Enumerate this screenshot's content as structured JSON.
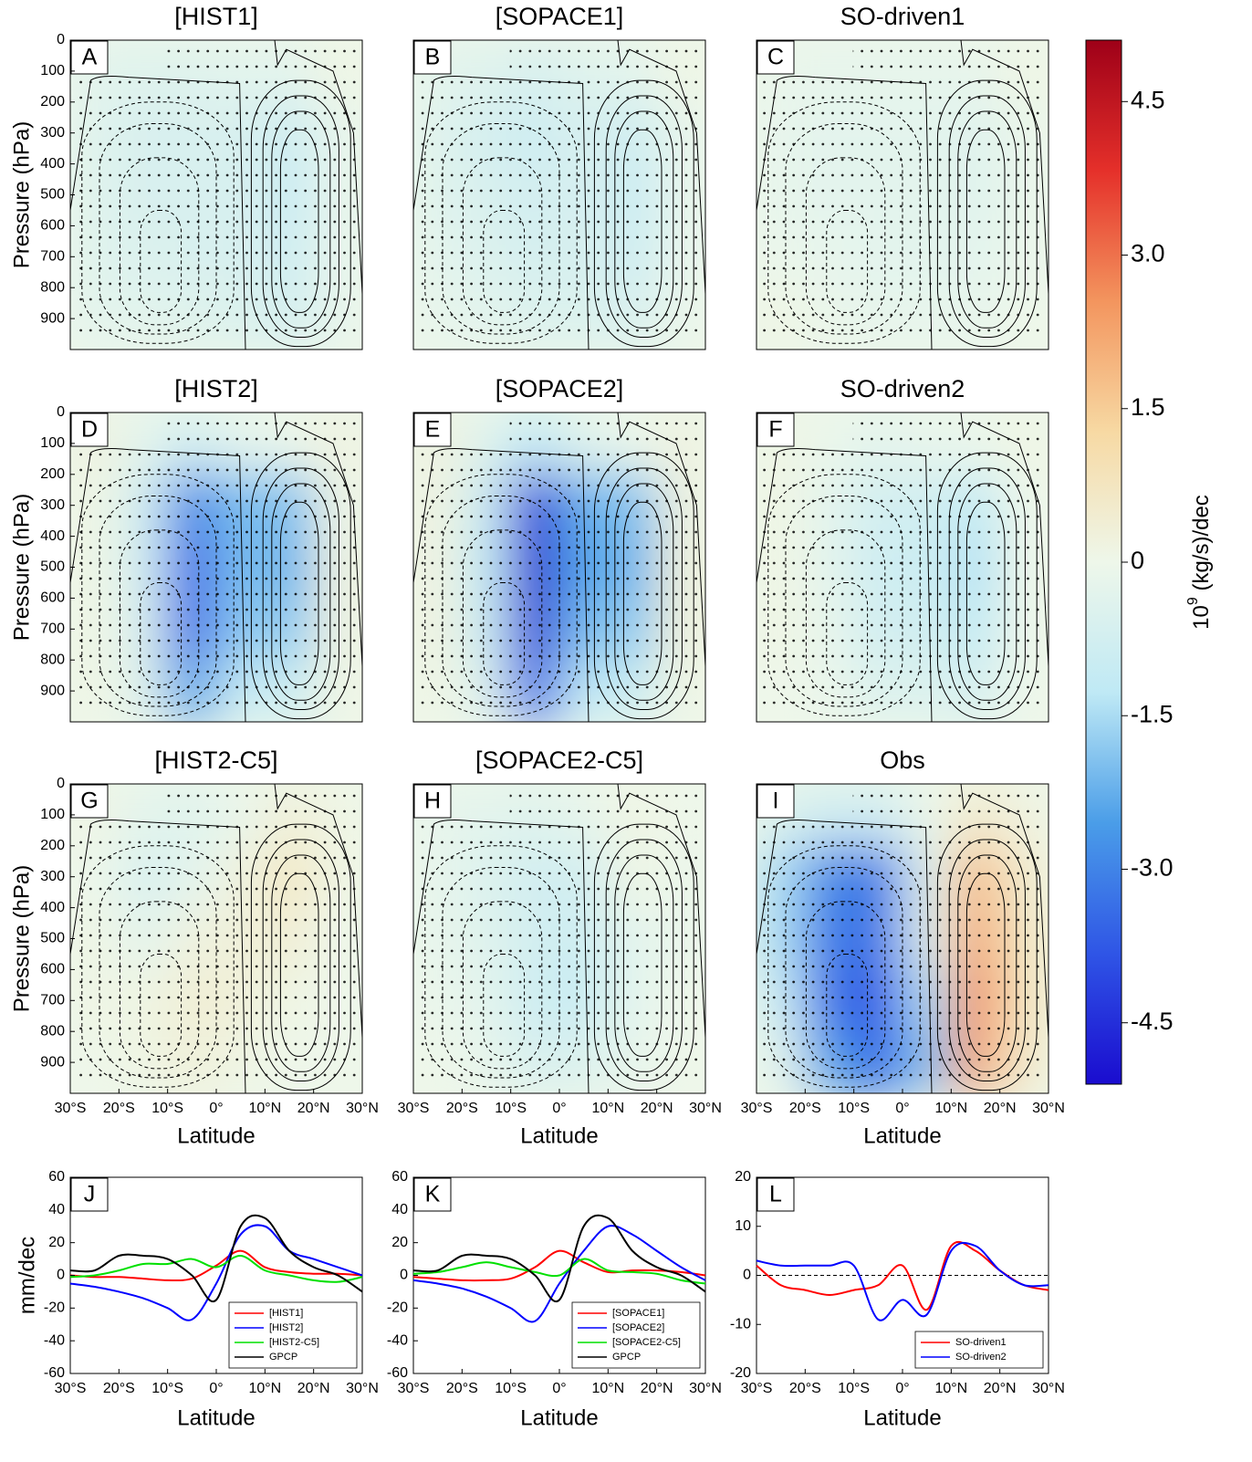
{
  "chart_data": [
    {
      "type": "heatmap",
      "title": "[HIST1]",
      "letter": "A",
      "ylabel": "Pressure (hPa)",
      "x": [
        -25,
        -15,
        -5,
        5,
        15,
        25
      ],
      "y": [
        100,
        300,
        500,
        700,
        900
      ],
      "z": [
        [
          -0.3,
          -0.4,
          -0.4,
          -0.3,
          -0.3,
          0.1
        ],
        [
          -0.4,
          -0.6,
          -0.6,
          -0.6,
          -0.9,
          -0.2
        ],
        [
          -0.4,
          -0.6,
          -0.6,
          -0.6,
          -1.0,
          -0.2
        ],
        [
          -0.4,
          -0.5,
          -0.6,
          -0.6,
          -0.9,
          -0.2
        ],
        [
          -0.3,
          -0.3,
          -0.4,
          -0.5,
          -0.7,
          -0.2
        ]
      ],
      "xlim": [
        -30,
        30
      ],
      "ylim": [
        0,
        1000
      ],
      "y_reversed": true,
      "yticks": [
        0,
        100,
        200,
        300,
        400,
        500,
        600,
        700,
        800,
        900
      ]
    },
    {
      "type": "heatmap",
      "title": "[SOPACE1]",
      "letter": "B",
      "x": [
        -25,
        -15,
        -5,
        5,
        15,
        25
      ],
      "y": [
        100,
        300,
        500,
        700,
        900
      ],
      "z": [
        [
          -0.3,
          -0.4,
          -0.6,
          -0.4,
          -0.3,
          0.1
        ],
        [
          -0.4,
          -0.7,
          -0.9,
          -0.6,
          -0.9,
          -0.2
        ],
        [
          -0.4,
          -0.6,
          -0.8,
          -0.6,
          -1.0,
          -0.2
        ],
        [
          -0.3,
          -0.5,
          -0.7,
          -0.6,
          -0.9,
          -0.2
        ],
        [
          -0.2,
          -0.3,
          -0.5,
          -0.5,
          -0.6,
          -0.1
        ]
      ],
      "xlim": [
        -30,
        30
      ],
      "ylim": [
        0,
        1000
      ],
      "y_reversed": true
    },
    {
      "type": "heatmap",
      "title": "SO-driven1",
      "letter": "C",
      "x": [
        -25,
        -15,
        -5,
        5,
        15,
        25
      ],
      "y": [
        100,
        300,
        500,
        700,
        900
      ],
      "z": [
        [
          -0.1,
          -0.2,
          -0.2,
          -0.2,
          -0.2,
          0.1
        ],
        [
          -0.2,
          -0.3,
          -0.3,
          -0.3,
          -0.4,
          -0.1
        ],
        [
          -0.2,
          -0.3,
          -0.3,
          -0.3,
          -0.4,
          -0.1
        ],
        [
          -0.1,
          -0.2,
          -0.3,
          -0.3,
          -0.3,
          -0.1
        ],
        [
          0.1,
          -0.1,
          -0.2,
          -0.2,
          -0.2,
          0
        ]
      ],
      "xlim": [
        -30,
        30
      ],
      "ylim": [
        0,
        1000
      ],
      "y_reversed": true
    },
    {
      "type": "heatmap",
      "title": "[HIST2]",
      "letter": "D",
      "ylabel": "Pressure (hPa)",
      "x": [
        -25,
        -15,
        -5,
        5,
        15,
        25
      ],
      "y": [
        100,
        300,
        500,
        700,
        900
      ],
      "z": [
        [
          0.2,
          -0.3,
          -0.8,
          -0.3,
          -0.1,
          0.2
        ],
        [
          0.1,
          -0.8,
          -3.0,
          -2.0,
          -2.0,
          0.1
        ],
        [
          0.1,
          -0.8,
          -3.5,
          -2.0,
          -2.2,
          0.2
        ],
        [
          0.1,
          -0.6,
          -3.5,
          -1.8,
          -1.8,
          0.2
        ],
        [
          0.1,
          -0.4,
          -2.5,
          -1.0,
          -1.0,
          0.1
        ]
      ],
      "xlim": [
        -30,
        30
      ],
      "ylim": [
        0,
        1000
      ],
      "y_reversed": true,
      "yticks": [
        0,
        100,
        200,
        300,
        400,
        500,
        600,
        700,
        800,
        900
      ]
    },
    {
      "type": "heatmap",
      "title": "[SOPACE2]",
      "letter": "E",
      "x": [
        -25,
        -15,
        -5,
        5,
        15,
        25
      ],
      "y": [
        100,
        300,
        500,
        700,
        900
      ],
      "z": [
        [
          0.2,
          -0.4,
          -1.2,
          -0.4,
          -0.1,
          0.2
        ],
        [
          0.2,
          -1.0,
          -4.5,
          -2.2,
          -2.0,
          0.2
        ],
        [
          0.2,
          -1.2,
          -4.8,
          -2.4,
          -2.2,
          0.3
        ],
        [
          0.2,
          -1.0,
          -4.6,
          -2.0,
          -1.8,
          0.3
        ],
        [
          0.1,
          -0.5,
          -3.5,
          -1.2,
          -1.0,
          0.1
        ]
      ],
      "xlim": [
        -30,
        30
      ],
      "ylim": [
        0,
        1000
      ],
      "y_reversed": true
    },
    {
      "type": "heatmap",
      "title": "SO-driven2",
      "letter": "F",
      "x": [
        -25,
        -15,
        -5,
        5,
        15,
        25
      ],
      "y": [
        100,
        300,
        500,
        700,
        900
      ],
      "z": [
        [
          0.1,
          -0.1,
          -0.3,
          -0.2,
          -0.1,
          0.1
        ],
        [
          0.1,
          -0.3,
          -0.8,
          -0.8,
          -1.2,
          0
        ],
        [
          0.1,
          -0.3,
          -0.9,
          -0.9,
          -1.4,
          0
        ],
        [
          0.1,
          -0.2,
          -0.8,
          -0.8,
          -1.2,
          0
        ],
        [
          0,
          -0.1,
          -0.5,
          -0.5,
          -0.7,
          0
        ]
      ],
      "xlim": [
        -30,
        30
      ],
      "ylim": [
        0,
        1000
      ],
      "y_reversed": true
    },
    {
      "type": "heatmap",
      "title": "[HIST2-C5]",
      "letter": "G",
      "ylabel": "Pressure (hPa)",
      "xlabel": "Latitude",
      "x": [
        -25,
        -15,
        -5,
        5,
        15,
        25
      ],
      "y": [
        100,
        300,
        500,
        700,
        900
      ],
      "z": [
        [
          0.1,
          -0.3,
          -0.4,
          -0.1,
          0.3,
          0.1
        ],
        [
          0,
          -0.6,
          -0.3,
          0.2,
          0.7,
          0.1
        ],
        [
          0.1,
          -0.3,
          0.2,
          0.3,
          0.4,
          0
        ],
        [
          0.1,
          0.1,
          0.4,
          0.3,
          0.1,
          0
        ],
        [
          0,
          0.1,
          0.3,
          0.1,
          0,
          0
        ]
      ],
      "xlim": [
        -30,
        30
      ],
      "ylim": [
        0,
        1000
      ],
      "y_reversed": true,
      "yticks": [
        0,
        100,
        200,
        300,
        400,
        500,
        600,
        700,
        800,
        900
      ],
      "xticks": [
        {
          "value": -30,
          "label": "30°S"
        },
        {
          "value": -20,
          "label": "20°S"
        },
        {
          "value": -10,
          "label": "10°S"
        },
        {
          "value": 0,
          "label": "0°"
        },
        {
          "value": 10,
          "label": "10°N"
        },
        {
          "value": 20,
          "label": "20°N"
        },
        {
          "value": 30,
          "label": "30°N"
        }
      ]
    },
    {
      "type": "heatmap",
      "title": "[SOPACE2-C5]",
      "letter": "H",
      "xlabel": "Latitude",
      "x": [
        -25,
        -15,
        -5,
        5,
        15,
        25
      ],
      "y": [
        100,
        300,
        500,
        700,
        900
      ],
      "z": [
        [
          -0.2,
          -0.3,
          -0.4,
          -0.2,
          0.1,
          0
        ],
        [
          -0.2,
          -0.5,
          -0.8,
          -0.8,
          0.1,
          -0.1
        ],
        [
          -0.2,
          -0.4,
          -0.8,
          -0.9,
          -0.3,
          -0.1
        ],
        [
          -0.1,
          -0.3,
          -0.9,
          -1.0,
          -0.3,
          0
        ],
        [
          0,
          -0.2,
          -0.6,
          -0.5,
          -0.2,
          0
        ]
      ],
      "xlim": [
        -30,
        30
      ],
      "ylim": [
        0,
        1000
      ],
      "y_reversed": true,
      "xticks": [
        {
          "value": -30,
          "label": "30°S"
        },
        {
          "value": -20,
          "label": "20°S"
        },
        {
          "value": -10,
          "label": "10°S"
        },
        {
          "value": 0,
          "label": "0°"
        },
        {
          "value": 10,
          "label": "10°N"
        },
        {
          "value": 20,
          "label": "20°N"
        },
        {
          "value": 30,
          "label": "30°N"
        }
      ]
    },
    {
      "type": "heatmap",
      "title": "Obs",
      "letter": "I",
      "xlabel": "Latitude",
      "x": [
        -25,
        -15,
        -5,
        5,
        15,
        25
      ],
      "y": [
        100,
        300,
        500,
        700,
        900
      ],
      "z": [
        [
          -0.5,
          -0.8,
          -0.8,
          -0.1,
          0.5,
          0.2
        ],
        [
          -1.5,
          -3.0,
          -3.2,
          -0.5,
          1.8,
          0.5
        ],
        [
          -1.5,
          -3.2,
          -3.3,
          -0.5,
          2.2,
          0.7
        ],
        [
          -1.0,
          -3.3,
          -3.8,
          -1.5,
          2.6,
          0.8
        ],
        [
          -0.3,
          -2.5,
          -3.5,
          -2.0,
          2.3,
          0.6
        ]
      ],
      "xlim": [
        -30,
        30
      ],
      "ylim": [
        0,
        1000
      ],
      "y_reversed": true,
      "xticks": [
        {
          "value": -30,
          "label": "30°S"
        },
        {
          "value": -20,
          "label": "20°S"
        },
        {
          "value": -10,
          "label": "10°S"
        },
        {
          "value": 0,
          "label": "0°"
        },
        {
          "value": 10,
          "label": "10°N"
        },
        {
          "value": 20,
          "label": "20°N"
        },
        {
          "value": 30,
          "label": "30°N"
        }
      ]
    },
    {
      "type": "colorbar",
      "label": [
        "10",
        "9",
        " (kg/s)/dec"
      ],
      "ylim": [
        -5.1,
        5.1
      ],
      "colors": [
        "#1a0ccf",
        "#2f55e6",
        "#4a9de8",
        "#bfe9f5",
        "#eef7ea",
        "#f7d9a3",
        "#f3955e",
        "#e5302a",
        "#9e0018"
      ],
      "yticks": [
        -4.5,
        {
          "value": -3,
          "label": "-3.0"
        },
        -1.5,
        0,
        1.5,
        {
          "value": 3,
          "label": "3.0"
        },
        4.5
      ]
    },
    {
      "type": "line",
      "letter": "J",
      "ylabel": "mm/dec",
      "xlabel": "Latitude",
      "legend": "lower right",
      "zero_line": false,
      "x": [
        -30,
        -25,
        -20,
        -15,
        -10,
        -5,
        0,
        5,
        10,
        15,
        20,
        25,
        30
      ],
      "series": [
        {
          "name": "[HIST1]",
          "color": "#ff0000",
          "values": [
            0,
            -1,
            -1,
            -2,
            -3,
            -2,
            6,
            15,
            5,
            2,
            1,
            1,
            0
          ]
        },
        {
          "name": "[HIST2]",
          "color": "#0000ff",
          "values": [
            -5,
            -7,
            -10,
            -14,
            -20,
            -27,
            -5,
            25,
            30,
            15,
            10,
            5,
            0
          ]
        },
        {
          "name": "[HIST2-C5]",
          "color": "#00e000",
          "values": [
            -1,
            0,
            3,
            7,
            7,
            10,
            5,
            12,
            3,
            0,
            -3,
            -4,
            -1
          ]
        },
        {
          "name": "GPCP",
          "color": "#000000",
          "values": [
            3,
            3,
            12,
            12,
            10,
            0,
            -15,
            30,
            35,
            15,
            5,
            0,
            -10
          ]
        }
      ],
      "xlim": [
        -30,
        30
      ],
      "ylim": [
        -60,
        60
      ],
      "yticks": [
        -60,
        -40,
        -20,
        0,
        20,
        40,
        60
      ],
      "xticks": [
        {
          "value": -30,
          "label": "30°S"
        },
        {
          "value": -20,
          "label": "20°S"
        },
        {
          "value": -10,
          "label": "10°S"
        },
        {
          "value": 0,
          "label": "0°"
        },
        {
          "value": 10,
          "label": "10°N"
        },
        {
          "value": 20,
          "label": "20°N"
        },
        {
          "value": 30,
          "label": "30°N"
        }
      ]
    },
    {
      "type": "line",
      "letter": "K",
      "xlabel": "Latitude",
      "legend": "lower right",
      "zero_line": false,
      "x": [
        -30,
        -25,
        -20,
        -15,
        -10,
        -5,
        0,
        5,
        10,
        15,
        20,
        25,
        30
      ],
      "series": [
        {
          "name": "[SOPACE1]",
          "color": "#ff0000",
          "values": [
            -1,
            -2,
            -3,
            -3,
            -2,
            5,
            15,
            8,
            2,
            3,
            3,
            2,
            0
          ]
        },
        {
          "name": "[SOPACE2]",
          "color": "#0000ff",
          "values": [
            -3,
            -5,
            -8,
            -13,
            -20,
            -28,
            -5,
            15,
            30,
            25,
            15,
            5,
            -3
          ]
        },
        {
          "name": "[SOPACE2-C5]",
          "color": "#00e000",
          "values": [
            1,
            2,
            5,
            8,
            5,
            2,
            0,
            10,
            3,
            2,
            1,
            -3,
            -5
          ]
        },
        {
          "name": "GPCP",
          "color": "#000000",
          "values": [
            3,
            3,
            12,
            12,
            10,
            0,
            -15,
            30,
            35,
            15,
            5,
            0,
            -10
          ]
        }
      ],
      "xlim": [
        -30,
        30
      ],
      "ylim": [
        -60,
        60
      ],
      "yticks": [
        -60,
        -40,
        -20,
        0,
        20,
        40,
        60
      ],
      "xticks": [
        {
          "value": -30,
          "label": "30°S"
        },
        {
          "value": -20,
          "label": "20°S"
        },
        {
          "value": -10,
          "label": "10°S"
        },
        {
          "value": 0,
          "label": "0°"
        },
        {
          "value": 10,
          "label": "10°N"
        },
        {
          "value": 20,
          "label": "20°N"
        },
        {
          "value": 30,
          "label": "30°N"
        }
      ]
    },
    {
      "type": "line",
      "letter": "L",
      "xlabel": "Latitude",
      "legend": "lower right",
      "zero_line": true,
      "x": [
        -30,
        -25,
        -20,
        -15,
        -10,
        -5,
        0,
        5,
        10,
        15,
        20,
        25,
        30
      ],
      "series": [
        {
          "name": "SO-driven1",
          "color": "#ff0000",
          "values": [
            2,
            -2,
            -3,
            -4,
            -3,
            -2,
            2,
            -7,
            6,
            5,
            1,
            -2,
            -3
          ]
        },
        {
          "name": "SO-driven2",
          "color": "#0000ff",
          "values": [
            3,
            2,
            2,
            2,
            2,
            -9,
            -5,
            -8,
            5,
            6,
            1,
            -2,
            -2
          ]
        }
      ],
      "xlim": [
        -30,
        30
      ],
      "ylim": [
        -20,
        20
      ],
      "yticks": [
        -20,
        -10,
        0,
        10,
        20
      ],
      "xticks": [
        {
          "value": -30,
          "label": "30°S"
        },
        {
          "value": -20,
          "label": "20°S"
        },
        {
          "value": -10,
          "label": "10°S"
        },
        {
          "value": 0,
          "label": "0°"
        },
        {
          "value": 10,
          "label": "10°N"
        },
        {
          "value": 20,
          "label": "20°N"
        },
        {
          "value": 30,
          "label": "30°N"
        }
      ]
    }
  ]
}
